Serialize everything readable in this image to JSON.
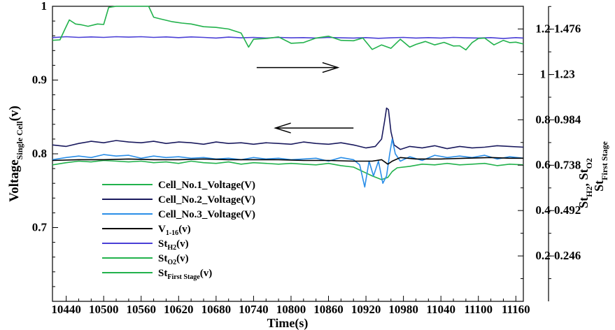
{
  "chart_data": {
    "type": "line",
    "xlabel": "Time(s)",
    "x_ticks": [
      "10440",
      "10460",
      "10480",
      "10500",
      "10520",
      "10540",
      "10560",
      "10580",
      "10600",
      "10620",
      "10640",
      "10660",
      "10680",
      "10700",
      "10720",
      "10740",
      "10760",
      "10780",
      "10800",
      "10820",
      "10840",
      "10860",
      "10880",
      "10900",
      "10920",
      "10940",
      "10960",
      "10980",
      "11000",
      "11020",
      "11040",
      "11060",
      "11080",
      "11100",
      "11120",
      "11140",
      "11160"
    ],
    "x_tick_labels": [
      "10440",
      "10500",
      "10560",
      "10620",
      "10680",
      "10740",
      "10800",
      "10860",
      "10920",
      "10980",
      "11040",
      "11100",
      "11160"
    ],
    "xlim": [
      10418,
      11172
    ],
    "ylabel_left": {
      "main": "Voltage",
      "sub": "Single Cell",
      "suffix": "(v)"
    },
    "ylim_left": [
      0.6,
      1.0
    ],
    "yticks_left": [
      "0.7",
      "0.8",
      "0.9",
      "1"
    ],
    "ylabel_right_inner": {
      "main_a": "St",
      "sub_a": "H2",
      "sep": ", St",
      "sub_b": "O2"
    },
    "ylim_right_inner": [
      0.0,
      1.3
    ],
    "yticks_right_inner": [
      "0.2",
      "0.4",
      "0.6",
      "0.8",
      "1",
      "1.2"
    ],
    "ylabel_right_outer": {
      "main": "St",
      "sub": "First Stage"
    },
    "ylim_right_outer": [
      0.0,
      1.6
    ],
    "yticks_right_outer": [
      "0.246",
      "0.492",
      "0.738",
      "0.984",
      "1.23",
      "1.476"
    ],
    "legend_position": "lower-left",
    "legend": [
      {
        "main": "Cell_No.1_Voltage(V)",
        "sub": "",
        "after": "",
        "color": "#22b24c"
      },
      {
        "main": "Cell_No.2_Voltage(V)",
        "sub": "",
        "after": "",
        "color": "#1a1a5e"
      },
      {
        "main": "Cell_No.3_Voltage(V)",
        "sub": "",
        "after": "",
        "color": "#2a8ee8"
      },
      {
        "main": "V",
        "sub": "1-16",
        "after": "(v)",
        "color": "#000000"
      },
      {
        "main": "St",
        "sub": "H2",
        "after": "(v)",
        "color": "#4a3fd6"
      },
      {
        "main": "St",
        "sub": "O2",
        "after": "(v)",
        "color": "#22b24c"
      },
      {
        "main": "St",
        "sub": "First Stage",
        "after": "(v)",
        "color": "#22b24c"
      }
    ],
    "arrows": [
      {
        "direction": "right",
        "from_x": 10745,
        "to_x": 10875,
        "y": 0.917
      },
      {
        "direction": "left",
        "from_x": 10900,
        "to_x": 10775,
        "y": 0.835
      }
    ],
    "series": [
      {
        "name": "Cell_No.1_Voltage(V)",
        "axis": "left",
        "color": "#22b24c",
        "x": [
          10418,
          10440,
          10460,
          10480,
          10500,
          10520,
          10540,
          10560,
          10580,
          10600,
          10620,
          10640,
          10660,
          10680,
          10700,
          10720,
          10740,
          10760,
          10780,
          10800,
          10820,
          10840,
          10860,
          10880,
          10900,
          10915,
          10930,
          10945,
          10955,
          10962,
          10970,
          10990,
          11010,
          11030,
          11050,
          11070,
          11090,
          11110,
          11130,
          11150,
          11172
        ],
        "y": [
          0.785,
          0.788,
          0.79,
          0.789,
          0.791,
          0.79,
          0.789,
          0.79,
          0.788,
          0.789,
          0.787,
          0.79,
          0.788,
          0.787,
          0.789,
          0.786,
          0.788,
          0.787,
          0.786,
          0.787,
          0.786,
          0.785,
          0.787,
          0.784,
          0.782,
          0.776,
          0.77,
          0.765,
          0.768,
          0.776,
          0.781,
          0.783,
          0.786,
          0.785,
          0.787,
          0.785,
          0.786,
          0.787,
          0.784,
          0.786,
          0.785
        ]
      },
      {
        "name": "Cell_No.2_Voltage(V)",
        "axis": "left",
        "color": "#1a1a5e",
        "x": [
          10418,
          10440,
          10460,
          10480,
          10500,
          10520,
          10540,
          10560,
          10580,
          10600,
          10620,
          10640,
          10660,
          10680,
          10700,
          10720,
          10740,
          10760,
          10780,
          10800,
          10820,
          10840,
          10860,
          10880,
          10900,
          10920,
          10935,
          10945,
          10950,
          10953,
          10956,
          10960,
          10965,
          10975,
          10990,
          11010,
          11030,
          11050,
          11070,
          11090,
          11110,
          11130,
          11150,
          11172
        ],
        "y": [
          0.812,
          0.81,
          0.814,
          0.817,
          0.815,
          0.818,
          0.816,
          0.815,
          0.817,
          0.814,
          0.816,
          0.815,
          0.813,
          0.816,
          0.814,
          0.815,
          0.813,
          0.815,
          0.814,
          0.813,
          0.816,
          0.814,
          0.813,
          0.815,
          0.812,
          0.808,
          0.81,
          0.82,
          0.845,
          0.862,
          0.86,
          0.83,
          0.812,
          0.806,
          0.81,
          0.808,
          0.811,
          0.807,
          0.81,
          0.808,
          0.809,
          0.811,
          0.81,
          0.809
        ]
      },
      {
        "name": "Cell_No.3_Voltage(V)",
        "axis": "left",
        "color": "#2a8ee8",
        "x": [
          10418,
          10440,
          10460,
          10480,
          10500,
          10520,
          10540,
          10560,
          10580,
          10600,
          10620,
          10640,
          10660,
          10680,
          10700,
          10720,
          10740,
          10760,
          10780,
          10800,
          10820,
          10840,
          10860,
          10880,
          10900,
          10910,
          10918,
          10925,
          10932,
          10940,
          10947,
          10953,
          10958,
          10962,
          10967,
          10975,
          10990,
          11010,
          11030,
          11050,
          11070,
          11090,
          11110,
          11130,
          11150,
          11172
        ],
        "y": [
          0.792,
          0.795,
          0.797,
          0.795,
          0.799,
          0.797,
          0.798,
          0.794,
          0.797,
          0.795,
          0.796,
          0.794,
          0.795,
          0.793,
          0.794,
          0.792,
          0.795,
          0.793,
          0.794,
          0.792,
          0.793,
          0.794,
          0.79,
          0.795,
          0.792,
          0.785,
          0.755,
          0.79,
          0.77,
          0.79,
          0.76,
          0.77,
          0.8,
          0.82,
          0.8,
          0.79,
          0.796,
          0.791,
          0.798,
          0.795,
          0.797,
          0.795,
          0.798,
          0.793,
          0.796,
          0.794
        ]
      },
      {
        "name": "V1-16(v)",
        "axis": "left",
        "color": "#000000",
        "x": [
          10418,
          10460,
          10500,
          10540,
          10580,
          10620,
          10660,
          10700,
          10740,
          10780,
          10820,
          10860,
          10900,
          10930,
          10945,
          10955,
          10962,
          10975,
          11000,
          11040,
          11080,
          11120,
          11150,
          11172
        ],
        "y": [
          0.791,
          0.792,
          0.792,
          0.793,
          0.792,
          0.792,
          0.793,
          0.792,
          0.792,
          0.792,
          0.791,
          0.791,
          0.79,
          0.79,
          0.792,
          0.786,
          0.79,
          0.795,
          0.793,
          0.793,
          0.794,
          0.795,
          0.794,
          0.794
        ]
      },
      {
        "name": "StH2(v)",
        "axis": "right_inner",
        "color": "#4a3fd6",
        "x": [
          10418,
          10440,
          10460,
          10480,
          10500,
          10520,
          10540,
          10560,
          10580,
          10600,
          10620,
          10640,
          10660,
          10680,
          10700,
          10720,
          10740,
          10760,
          10780,
          10800,
          10820,
          10840,
          10860,
          10880,
          10900,
          10920,
          10940,
          10960,
          10980,
          11000,
          11020,
          11040,
          11060,
          11080,
          11100,
          11120,
          11140,
          11160,
          11172
        ],
        "y": [
          1.162,
          1.166,
          1.163,
          1.165,
          1.163,
          1.166,
          1.164,
          1.166,
          1.163,
          1.165,
          1.162,
          1.165,
          1.163,
          1.16,
          1.164,
          1.161,
          1.163,
          1.16,
          1.163,
          1.161,
          1.162,
          1.16,
          1.163,
          1.161,
          1.16,
          1.162,
          1.159,
          1.161,
          1.163,
          1.16,
          1.162,
          1.16,
          1.163,
          1.161,
          1.16,
          1.162,
          1.158,
          1.162,
          1.16
        ]
      },
      {
        "name": "StO2(v)",
        "axis": "right_inner",
        "color": "#22b24c",
        "x": [
          10418,
          10430,
          10438,
          10445,
          10455,
          10465,
          10475,
          10490,
          10500,
          10508,
          10520,
          10540,
          10560,
          10572,
          10580,
          10590,
          10610,
          10625,
          10640,
          10660,
          10680,
          10700,
          10720,
          10732,
          10740,
          10760,
          10780,
          10800,
          10820,
          10840,
          10860,
          10880,
          10900,
          10915,
          10930,
          10945,
          10960,
          10975,
          10990,
          11000,
          11015,
          11030,
          11045,
          11060,
          11070,
          11080,
          11090,
          11100,
          11110,
          11125,
          11140,
          11150,
          11160,
          11172
        ],
        "y": [
          1.15,
          1.152,
          1.2,
          1.24,
          1.222,
          1.218,
          1.212,
          1.222,
          1.22,
          1.295,
          1.3,
          1.3,
          1.3,
          1.3,
          1.252,
          1.245,
          1.232,
          1.226,
          1.222,
          1.21,
          1.207,
          1.2,
          1.182,
          1.12,
          1.155,
          1.158,
          1.165,
          1.137,
          1.14,
          1.16,
          1.168,
          1.15,
          1.148,
          1.16,
          1.11,
          1.13,
          1.115,
          1.155,
          1.12,
          1.132,
          1.145,
          1.13,
          1.141,
          1.125,
          1.126,
          1.108,
          1.14,
          1.158,
          1.16,
          1.13,
          1.15,
          1.14,
          1.142,
          1.134
        ]
      },
      {
        "name": "StFirst Stage(v)",
        "axis": "right_outer",
        "color": "#22b24c",
        "x": [],
        "y": []
      }
    ]
  }
}
